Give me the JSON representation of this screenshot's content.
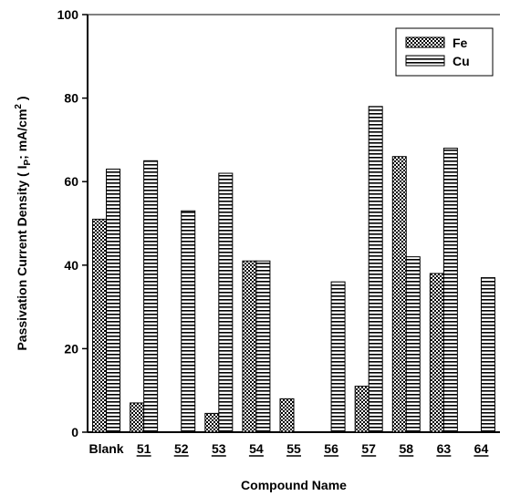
{
  "chart_data": {
    "type": "bar",
    "categories": [
      "Blank",
      "51",
      "52",
      "53",
      "54",
      "55",
      "56",
      "57",
      "58",
      "63",
      "64"
    ],
    "underlined_categories": [
      "51",
      "52",
      "53",
      "54",
      "55",
      "56",
      "57",
      "58",
      "63",
      "64"
    ],
    "series": [
      {
        "name": "Fe",
        "pattern": "crosshatch",
        "values": [
          51,
          7,
          null,
          4.5,
          41,
          8,
          null,
          11,
          66,
          38,
          null
        ]
      },
      {
        "name": "Cu",
        "pattern": "horizontal-stripes",
        "values": [
          63,
          65,
          53,
          62,
          41,
          0,
          36,
          78,
          42,
          68,
          37
        ]
      }
    ],
    "title": "",
    "xlabel": "Compound Name",
    "ylabel": {
      "prefix": "Passivation Current Density  ( I",
      "subscript": "P",
      "middle": "; mA/cm",
      "superscript": "2",
      "suffix": " )"
    },
    "ylim": [
      0,
      100
    ],
    "yticks": [
      "0",
      "20",
      "40",
      "60",
      "80",
      "100"
    ],
    "grid": false,
    "legend_position": "top-right",
    "colors": {
      "bar_fill": "#ffffff",
      "bar_stroke": "#000000",
      "axis": "#000000"
    }
  }
}
